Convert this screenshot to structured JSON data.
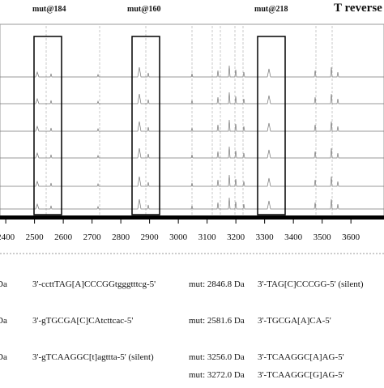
{
  "labels": [
    "mut@184",
    "mut@160",
    "mut@218",
    "T reverse"
  ],
  "axis": {
    "xlim": [
      2380,
      3715
    ],
    "xticks": [
      2400,
      2500,
      2600,
      2700,
      2800,
      2900,
      3000,
      3100,
      3200,
      3300,
      3400,
      3500,
      3600
    ]
  },
  "table": {
    "rows": [
      [
        "Da",
        "3'-ccttTAG[A]CCCGGtgggtttcg-5'",
        "mut: 2846.8 Da",
        "3'-TAG[C]CCCGG-5' (silent)"
      ],
      [
        "Da",
        "3'-gTGCGA[C]CAtcttcac-5'",
        "mut: 2581.6 Da",
        "3'-TGCGA[A]CA-5'"
      ],
      [
        "Da",
        "3'-gTCAAGGC[t]agttta-5' (silent)",
        "mut: 3256.0 Da",
        "3'-TCAAGGC[A]AG-5'"
      ],
      [
        "mut: 3272.0 Da",
        "3'-TCAAGGC[G]AG-5'"
      ]
    ]
  }
}
